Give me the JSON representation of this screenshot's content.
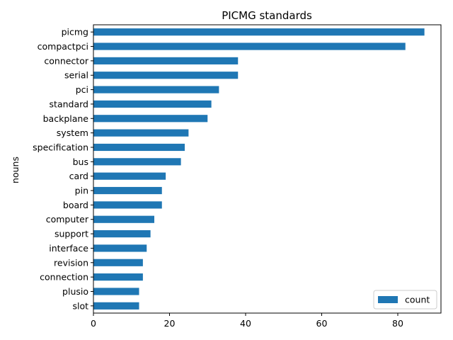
{
  "chart_data": {
    "type": "bar",
    "orientation": "horizontal",
    "title": "PICMG standards",
    "xlabel": "",
    "ylabel": "nouns",
    "categories": [
      "picmg",
      "compactpci",
      "connector",
      "serial",
      "pci",
      "standard",
      "backplane",
      "system",
      "specification",
      "bus",
      "card",
      "pin",
      "board",
      "computer",
      "support",
      "interface",
      "revision",
      "connection",
      "plusio",
      "slot"
    ],
    "series": [
      {
        "name": "count",
        "values": [
          87,
          82,
          38,
          38,
          33,
          31,
          30,
          25,
          24,
          23,
          19,
          18,
          18,
          16,
          15,
          14,
          13,
          13,
          12,
          12
        ]
      }
    ],
    "xlim": [
      0,
      91.35
    ],
    "xticks": [
      0,
      20,
      40,
      60,
      80
    ],
    "grid": false,
    "legend_position": "lower-right",
    "colors": {
      "bar": "#1f77b4"
    }
  }
}
